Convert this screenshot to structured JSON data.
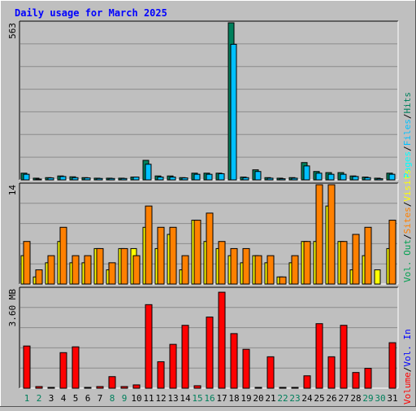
{
  "chart_data": {
    "type": "bar",
    "title": "Daily usage for March 2025",
    "days": [
      "1",
      "2",
      "3",
      "4",
      "5",
      "6",
      "7",
      "8",
      "9",
      "10",
      "11",
      "12",
      "13",
      "14",
      "15",
      "16",
      "17",
      "18",
      "19",
      "20",
      "21",
      "22",
      "23",
      "24",
      "25",
      "26",
      "27",
      "28",
      "29",
      "30",
      "31"
    ],
    "weekend_days": [
      "1",
      "2",
      "8",
      "9",
      "15",
      "16",
      "22",
      "23",
      "29",
      "30"
    ],
    "hits_panel": {
      "max_label": "563",
      "ymax": 563,
      "legend": [
        "Hits",
        "Files",
        "Pages"
      ],
      "series": [
        {
          "name": "Hits",
          "values": [
            24,
            6,
            8,
            14,
            11,
            8,
            6,
            6,
            6,
            10,
            70,
            14,
            14,
            8,
            24,
            24,
            24,
            563,
            10,
            36,
            8,
            6,
            8,
            62,
            30,
            26,
            26,
            14,
            10,
            6,
            24
          ]
        },
        {
          "name": "Files",
          "values": [
            20,
            3,
            7,
            12,
            8,
            7,
            5,
            5,
            5,
            10,
            56,
            10,
            10,
            7,
            20,
            20,
            22,
            486,
            8,
            30,
            6,
            4,
            6,
            50,
            24,
            20,
            20,
            12,
            8,
            4,
            20
          ]
        }
      ]
    },
    "visits_panel": {
      "max_label": "14",
      "ymax": 14,
      "legend": [
        "Visits",
        "Sites"
      ],
      "series": [
        {
          "name": "Visits",
          "values": [
            4,
            1,
            3,
            6,
            3,
            3,
            5,
            2,
            5,
            5,
            8,
            5,
            7,
            2,
            9,
            6,
            5,
            4,
            3,
            4,
            3,
            1,
            3,
            6,
            6,
            11,
            6,
            2,
            4,
            2,
            5
          ]
        },
        {
          "name": "Sites",
          "values": [
            6,
            2,
            4,
            8,
            4,
            4,
            5,
            3,
            5,
            4,
            11,
            8,
            8,
            4,
            9,
            10,
            6,
            5,
            5,
            4,
            4,
            1,
            4,
            6,
            14,
            14,
            6,
            7,
            8,
            0,
            9
          ]
        }
      ]
    },
    "volume_panel": {
      "max_label": "3.60 MB",
      "ymax": 3.6,
      "legend": [
        "Volume",
        "Vol. In",
        "Vol. Out"
      ],
      "series": [
        {
          "name": "Volume",
          "values": [
            1.53,
            0.06,
            0.03,
            1.29,
            1.5,
            0.03,
            0.06,
            0.42,
            0.06,
            0.12,
            3.03,
            0.96,
            1.59,
            2.28,
            0.09,
            2.58,
            3.48,
            1.98,
            1.41,
            0.03,
            1.14,
            0.03,
            0.03,
            0.45,
            2.34,
            1.14,
            2.28,
            0.57,
            0.72,
            0,
            1.65
          ]
        }
      ]
    },
    "colors": {
      "hits": "#00805c",
      "files": "#00c0ff",
      "pages": "#00ffff",
      "visits": "#ffff00",
      "sites": "#ff8000",
      "volume": "#ff0000",
      "kbytes": "#ff0000",
      "vol_in": "#0000ff",
      "vol_out": "#00a050",
      "title": "#0000ff",
      "weekday_label": "#000000",
      "weekend_label": "#00805c",
      "background": "#bfbfbf",
      "grid": "#8c8c8c"
    }
  }
}
